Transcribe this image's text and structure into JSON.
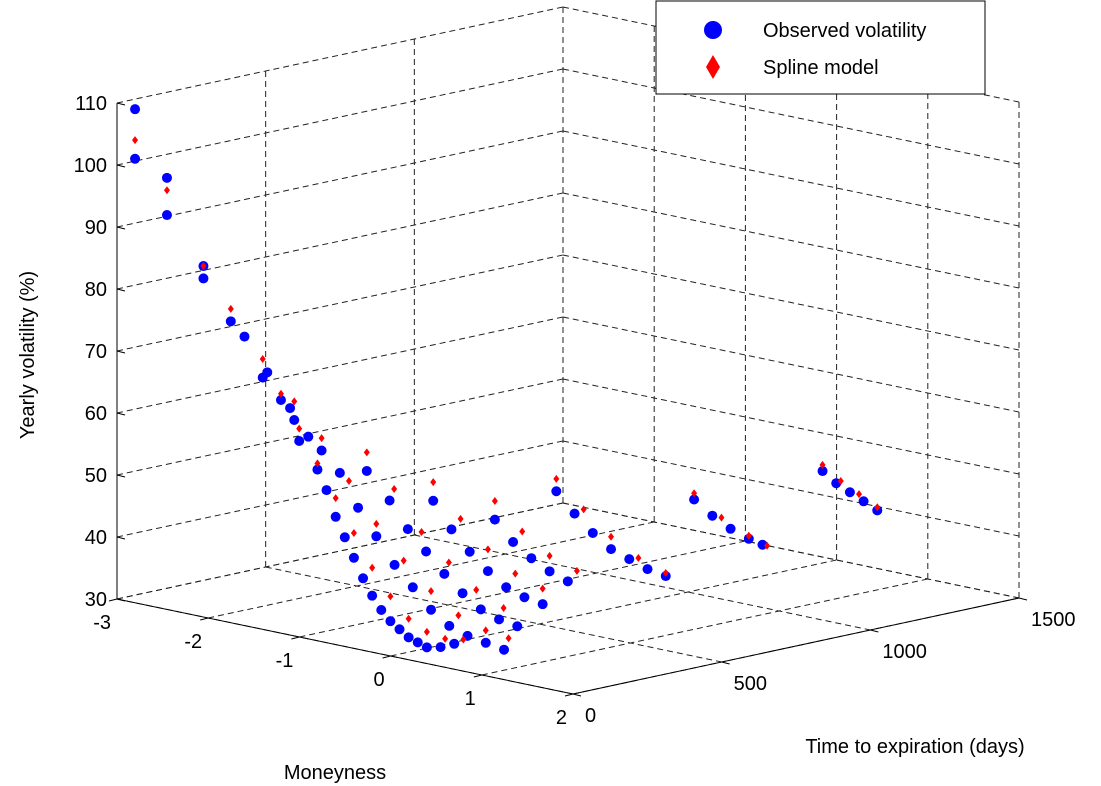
{
  "chart_data": {
    "type": "scatter",
    "title": "",
    "xlabel": "Moneyness",
    "ylabel": "Time to expiration (days)",
    "zlabel": "Yearly volatility (%)",
    "xlim": [
      -3,
      2
    ],
    "ylim": [
      0,
      1500
    ],
    "zlim": [
      30,
      110
    ],
    "x_ticks": [
      -3,
      -2,
      -1,
      0,
      1,
      2
    ],
    "y_ticks": [
      0,
      500,
      1000,
      1500
    ],
    "z_ticks": [
      30,
      40,
      50,
      60,
      70,
      80,
      90,
      100,
      110
    ],
    "grid": true,
    "legend_position": "top-right",
    "series": [
      {
        "name": "Observed volatility",
        "marker": "circle",
        "color": "#0000ff",
        "points": [
          {
            "x": -2.9,
            "y": 30,
            "z": 109
          },
          {
            "x": -2.9,
            "y": 30,
            "z": 101
          },
          {
            "x": -2.55,
            "y": 30,
            "z": 99
          },
          {
            "x": -2.55,
            "y": 30,
            "z": 93
          },
          {
            "x": -2.15,
            "y": 30,
            "z": 86
          },
          {
            "x": -2.15,
            "y": 30,
            "z": 84
          },
          {
            "x": -1.85,
            "y": 30,
            "z": 78
          },
          {
            "x": -1.7,
            "y": 30,
            "z": 76
          },
          {
            "x": -1.5,
            "y": 30,
            "z": 70
          },
          {
            "x": -1.45,
            "y": 30,
            "z": 71
          },
          {
            "x": -1.3,
            "y": 30,
            "z": 67
          },
          {
            "x": -1.2,
            "y": 30,
            "z": 66
          },
          {
            "x": -1.1,
            "y": 30,
            "z": 61
          },
          {
            "x": -1.0,
            "y": 30,
            "z": 62
          },
          {
            "x": -0.9,
            "y": 30,
            "z": 57
          },
          {
            "x": -0.8,
            "y": 30,
            "z": 54
          },
          {
            "x": -0.7,
            "y": 30,
            "z": 50
          },
          {
            "x": -0.6,
            "y": 30,
            "z": 47
          },
          {
            "x": -0.5,
            "y": 30,
            "z": 44
          },
          {
            "x": -0.4,
            "y": 30,
            "z": 41
          },
          {
            "x": -0.3,
            "y": 30,
            "z": 38.5
          },
          {
            "x": -0.2,
            "y": 30,
            "z": 36.5
          },
          {
            "x": -0.1,
            "y": 30,
            "z": 35
          },
          {
            "x": 0.0,
            "y": 30,
            "z": 34
          },
          {
            "x": 0.1,
            "y": 30,
            "z": 33
          },
          {
            "x": 0.2,
            "y": 30,
            "z": 32.5
          },
          {
            "x": 0.3,
            "y": 30,
            "z": 32
          },
          {
            "x": 0.45,
            "y": 30,
            "z": 32.5
          },
          {
            "x": 0.6,
            "y": 30,
            "z": 33.5
          },
          {
            "x": -1.35,
            "y": 90,
            "z": 63
          },
          {
            "x": -1.05,
            "y": 90,
            "z": 59
          },
          {
            "x": -0.85,
            "y": 90,
            "z": 56
          },
          {
            "x": -0.65,
            "y": 90,
            "z": 51
          },
          {
            "x": -0.45,
            "y": 90,
            "z": 47
          },
          {
            "x": -0.25,
            "y": 90,
            "z": 43
          },
          {
            "x": -0.05,
            "y": 90,
            "z": 40
          },
          {
            "x": 0.15,
            "y": 90,
            "z": 37
          },
          {
            "x": 0.35,
            "y": 90,
            "z": 35
          },
          {
            "x": 0.55,
            "y": 90,
            "z": 34
          },
          {
            "x": 0.75,
            "y": 90,
            "z": 33.5
          },
          {
            "x": 0.95,
            "y": 90,
            "z": 33
          },
          {
            "x": -0.75,
            "y": 150,
            "z": 56
          },
          {
            "x": -0.5,
            "y": 150,
            "z": 52
          },
          {
            "x": -0.3,
            "y": 150,
            "z": 48
          },
          {
            "x": -0.1,
            "y": 150,
            "z": 45
          },
          {
            "x": 0.1,
            "y": 150,
            "z": 42
          },
          {
            "x": 0.3,
            "y": 150,
            "z": 39.5
          },
          {
            "x": 0.5,
            "y": 150,
            "z": 37.5
          },
          {
            "x": 0.7,
            "y": 150,
            "z": 36.5
          },
          {
            "x": 0.9,
            "y": 150,
            "z": 36
          },
          {
            "x": -0.25,
            "y": 220,
            "z": 52
          },
          {
            "x": -0.05,
            "y": 220,
            "z": 48
          },
          {
            "x": 0.15,
            "y": 220,
            "z": 45
          },
          {
            "x": 0.35,
            "y": 220,
            "z": 42.5
          },
          {
            "x": 0.55,
            "y": 220,
            "z": 40.5
          },
          {
            "x": 0.75,
            "y": 220,
            "z": 39.5
          },
          {
            "x": 0.95,
            "y": 220,
            "z": 39
          },
          {
            "x": 0.1,
            "y": 320,
            "z": 49
          },
          {
            "x": 0.3,
            "y": 320,
            "z": 46
          },
          {
            "x": 0.5,
            "y": 320,
            "z": 44
          },
          {
            "x": 0.7,
            "y": 320,
            "z": 42.5
          },
          {
            "x": 0.9,
            "y": 320,
            "z": 41.5
          },
          {
            "x": 0.35,
            "y": 450,
            "z": 53
          },
          {
            "x": 0.55,
            "y": 450,
            "z": 50
          },
          {
            "x": 0.75,
            "y": 450,
            "z": 47.5
          },
          {
            "x": 0.95,
            "y": 450,
            "z": 45.5
          },
          {
            "x": 1.15,
            "y": 450,
            "z": 44.5
          },
          {
            "x": 1.35,
            "y": 450,
            "z": 43.5
          },
          {
            "x": 1.55,
            "y": 450,
            "z": 43
          },
          {
            "x": 0.85,
            "y": 760,
            "z": 50
          },
          {
            "x": 1.05,
            "y": 760,
            "z": 48
          },
          {
            "x": 1.25,
            "y": 760,
            "z": 46.5
          },
          {
            "x": 1.45,
            "y": 760,
            "z": 45.5
          },
          {
            "x": 1.6,
            "y": 760,
            "z": 45
          },
          {
            "x": 1.15,
            "y": 1100,
            "z": 52
          },
          {
            "x": 1.3,
            "y": 1100,
            "z": 50.5
          },
          {
            "x": 1.45,
            "y": 1100,
            "z": 49.5
          },
          {
            "x": 1.6,
            "y": 1100,
            "z": 48.5
          },
          {
            "x": 1.75,
            "y": 1100,
            "z": 47.5
          }
        ]
      },
      {
        "name": "Spline model",
        "marker": "diamond",
        "color": "#ff0000",
        "points": [
          {
            "x": -2.9,
            "y": 30,
            "z": 104
          },
          {
            "x": -2.55,
            "y": 30,
            "z": 97
          },
          {
            "x": -2.15,
            "y": 30,
            "z": 86
          },
          {
            "x": -1.85,
            "y": 30,
            "z": 80
          },
          {
            "x": -1.5,
            "y": 30,
            "z": 73
          },
          {
            "x": -1.3,
            "y": 30,
            "z": 68
          },
          {
            "x": -1.1,
            "y": 30,
            "z": 63
          },
          {
            "x": -0.9,
            "y": 30,
            "z": 58
          },
          {
            "x": -0.7,
            "y": 30,
            "z": 53
          },
          {
            "x": -0.5,
            "y": 30,
            "z": 48
          },
          {
            "x": -0.3,
            "y": 30,
            "z": 43
          },
          {
            "x": -0.1,
            "y": 30,
            "z": 39
          },
          {
            "x": 0.1,
            "y": 30,
            "z": 36
          },
          {
            "x": 0.3,
            "y": 30,
            "z": 34.5
          },
          {
            "x": 0.5,
            "y": 30,
            "z": 34
          },
          {
            "x": 0.7,
            "y": 30,
            "z": 34.5
          },
          {
            "x": -1.35,
            "y": 90,
            "z": 66
          },
          {
            "x": -1.05,
            "y": 90,
            "z": 61
          },
          {
            "x": -0.75,
            "y": 90,
            "z": 55
          },
          {
            "x": -0.45,
            "y": 90,
            "z": 49
          },
          {
            "x": -0.15,
            "y": 90,
            "z": 44
          },
          {
            "x": 0.15,
            "y": 90,
            "z": 40
          },
          {
            "x": 0.45,
            "y": 90,
            "z": 37
          },
          {
            "x": 0.75,
            "y": 90,
            "z": 35.5
          },
          {
            "x": 1.0,
            "y": 90,
            "z": 35
          },
          {
            "x": -0.75,
            "y": 150,
            "z": 59
          },
          {
            "x": -0.45,
            "y": 150,
            "z": 54
          },
          {
            "x": -0.15,
            "y": 150,
            "z": 48
          },
          {
            "x": 0.15,
            "y": 150,
            "z": 44
          },
          {
            "x": 0.45,
            "y": 150,
            "z": 40.5
          },
          {
            "x": 0.75,
            "y": 150,
            "z": 38.5
          },
          {
            "x": -0.25,
            "y": 220,
            "z": 55
          },
          {
            "x": 0.05,
            "y": 220,
            "z": 50
          },
          {
            "x": 0.35,
            "y": 220,
            "z": 46
          },
          {
            "x": 0.65,
            "y": 220,
            "z": 43
          },
          {
            "x": 0.95,
            "y": 220,
            "z": 41.5
          },
          {
            "x": 0.1,
            "y": 320,
            "z": 52
          },
          {
            "x": 0.4,
            "y": 320,
            "z": 48
          },
          {
            "x": 0.7,
            "y": 320,
            "z": 45
          },
          {
            "x": 1.0,
            "y": 320,
            "z": 43.5
          },
          {
            "x": 0.35,
            "y": 450,
            "z": 55
          },
          {
            "x": 0.65,
            "y": 450,
            "z": 51
          },
          {
            "x": 0.95,
            "y": 450,
            "z": 47.5
          },
          {
            "x": 1.25,
            "y": 450,
            "z": 45
          },
          {
            "x": 1.55,
            "y": 450,
            "z": 43.5
          },
          {
            "x": 0.85,
            "y": 760,
            "z": 51
          },
          {
            "x": 1.15,
            "y": 760,
            "z": 48
          },
          {
            "x": 1.45,
            "y": 760,
            "z": 46
          },
          {
            "x": 1.65,
            "y": 760,
            "z": 45
          },
          {
            "x": 1.15,
            "y": 1100,
            "z": 53
          },
          {
            "x": 1.35,
            "y": 1100,
            "z": 51
          },
          {
            "x": 1.55,
            "y": 1100,
            "z": 49.5
          },
          {
            "x": 1.75,
            "y": 1100,
            "z": 48
          }
        ]
      }
    ]
  }
}
